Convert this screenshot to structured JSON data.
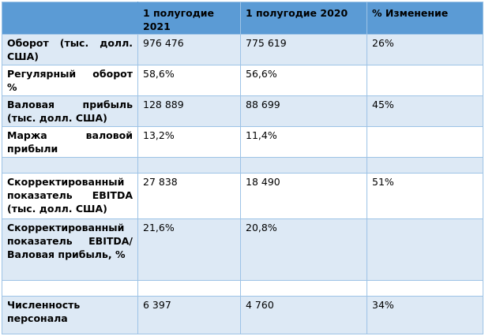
{
  "table": {
    "headers": [
      "",
      "1 полугодие 2021",
      "1 полугодие 2020",
      "% Изменение"
    ],
    "rows": [
      {
        "label": "Оборот (тыс. долл. США)",
        "h1_2021": "976 476",
        "h1_2020": "775 619",
        "change": "26%"
      },
      {
        "label": "Регулярный оборот %",
        "h1_2021": "58,6%",
        "h1_2020": "56,6%",
        "change": ""
      },
      {
        "label": "Валовая прибыль (тыс. долл. США)",
        "h1_2021": "128 889",
        "h1_2020": "88 699",
        "change": "45%"
      },
      {
        "label": "Маржа валовой прибыли",
        "h1_2021": "13,2%",
        "h1_2020": "11,4%",
        "change": ""
      },
      {
        "label": "",
        "h1_2021": "",
        "h1_2020": "",
        "change": ""
      },
      {
        "label": "Скорректированный показатель EBITDA (тыс. долл. США)",
        "h1_2021": "27 838",
        "h1_2020": "18 490",
        "change": "51%"
      },
      {
        "label": "Скорректированный показатель EBITDA/Валовая прибыль, %",
        "h1_2021": "21,6%",
        "h1_2020": "20,8%",
        "change": ""
      },
      {
        "label": "",
        "h1_2021": "",
        "h1_2020": "",
        "change": ""
      },
      {
        "label": "Численность персонала",
        "h1_2021": "6 397",
        "h1_2020": "4 760",
        "change": "34%"
      }
    ]
  }
}
